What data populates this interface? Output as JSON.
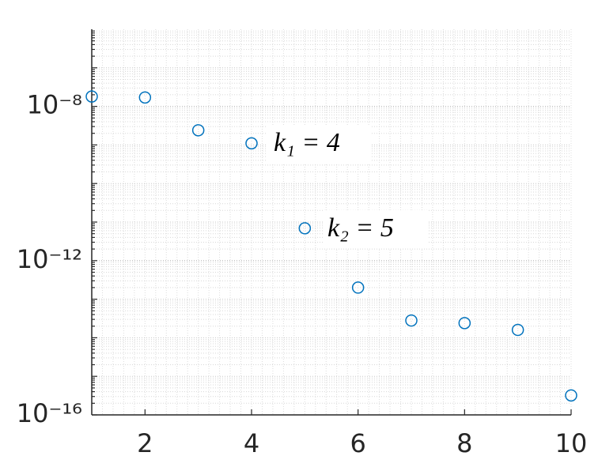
{
  "chart_data": {
    "type": "scatter",
    "x": [
      1,
      2,
      3,
      4,
      5,
      6,
      7,
      8,
      9,
      10
    ],
    "series": [
      {
        "color": "#0072BD",
        "values": [
          1.8e-08,
          1.7e-08,
          2.4e-09,
          1.1e-09,
          6.9e-12,
          2e-13,
          2.8e-14,
          2.4e-14,
          1.6e-14,
          3.2e-16
        ]
      }
    ],
    "xlim": [
      1,
      10
    ],
    "xticks": [
      2,
      4,
      6,
      8,
      10
    ],
    "ylim": [
      1e-16,
      1e-06
    ],
    "yticks": [
      {
        "value": 1e-16,
        "label": "10⁻¹⁶"
      },
      {
        "value": 1e-12,
        "label": "10⁻¹²"
      },
      {
        "value": 1e-08,
        "label": "10⁻⁸"
      }
    ],
    "y_log": true,
    "grid": true,
    "minor_grid": true,
    "annotations": [
      "k₁ = 4",
      "k₂ = 5"
    ]
  }
}
